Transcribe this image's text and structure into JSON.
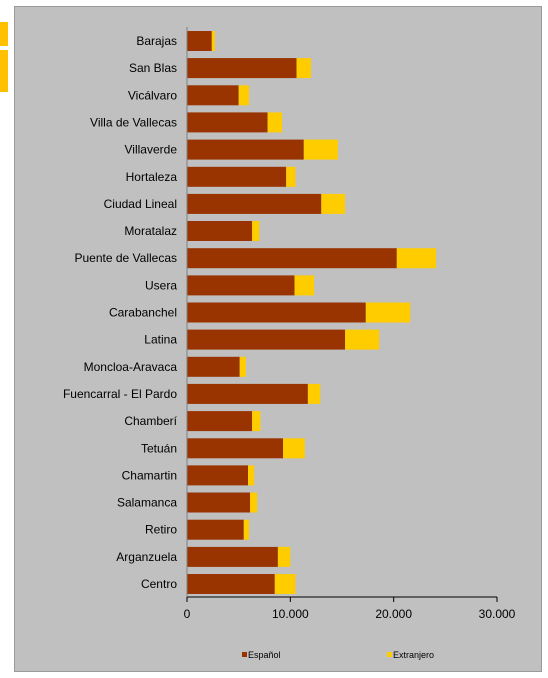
{
  "chart_data": {
    "type": "bar",
    "orientation": "horizontal",
    "stacked": true,
    "categories": [
      "Barajas",
      "San Blas",
      "Vicálvaro",
      "Villa de Vallecas",
      "Villaverde",
      "Hortaleza",
      "Ciudad Lineal",
      "Moratalaz",
      "Puente de Vallecas",
      "Usera",
      "Carabanchel",
      "Latina",
      "Moncloa-Aravaca",
      "Fuencarral - El Pardo",
      "Chamberí",
      "Tetuán",
      "Chamartin",
      "Salamanca",
      "Retiro",
      "Arganzuela",
      "Centro"
    ],
    "series": [
      {
        "name": "Español",
        "color": "#993300",
        "values": [
          2400,
          10600,
          5000,
          7800,
          11300,
          9600,
          13000,
          6300,
          20300,
          10400,
          17300,
          15300,
          5100,
          11700,
          6300,
          9300,
          5900,
          6100,
          5500,
          8800,
          8500
        ]
      },
      {
        "name": "Extranjero",
        "color": "#ffcc00",
        "values": [
          300,
          1400,
          1000,
          1400,
          3300,
          900,
          2300,
          700,
          3800,
          1900,
          4300,
          3300,
          600,
          1200,
          800,
          2100,
          600,
          700,
          500,
          1200,
          2000
        ]
      }
    ],
    "xlim": [
      0,
      30000
    ],
    "xticks": [
      "0",
      "10.000",
      "20.000",
      "30.000"
    ],
    "grid": false,
    "legend_position": "bottom"
  },
  "colors": {
    "plot_background": "#c0c0c0",
    "espanol": "#993300",
    "extranjero": "#ffcc00"
  }
}
